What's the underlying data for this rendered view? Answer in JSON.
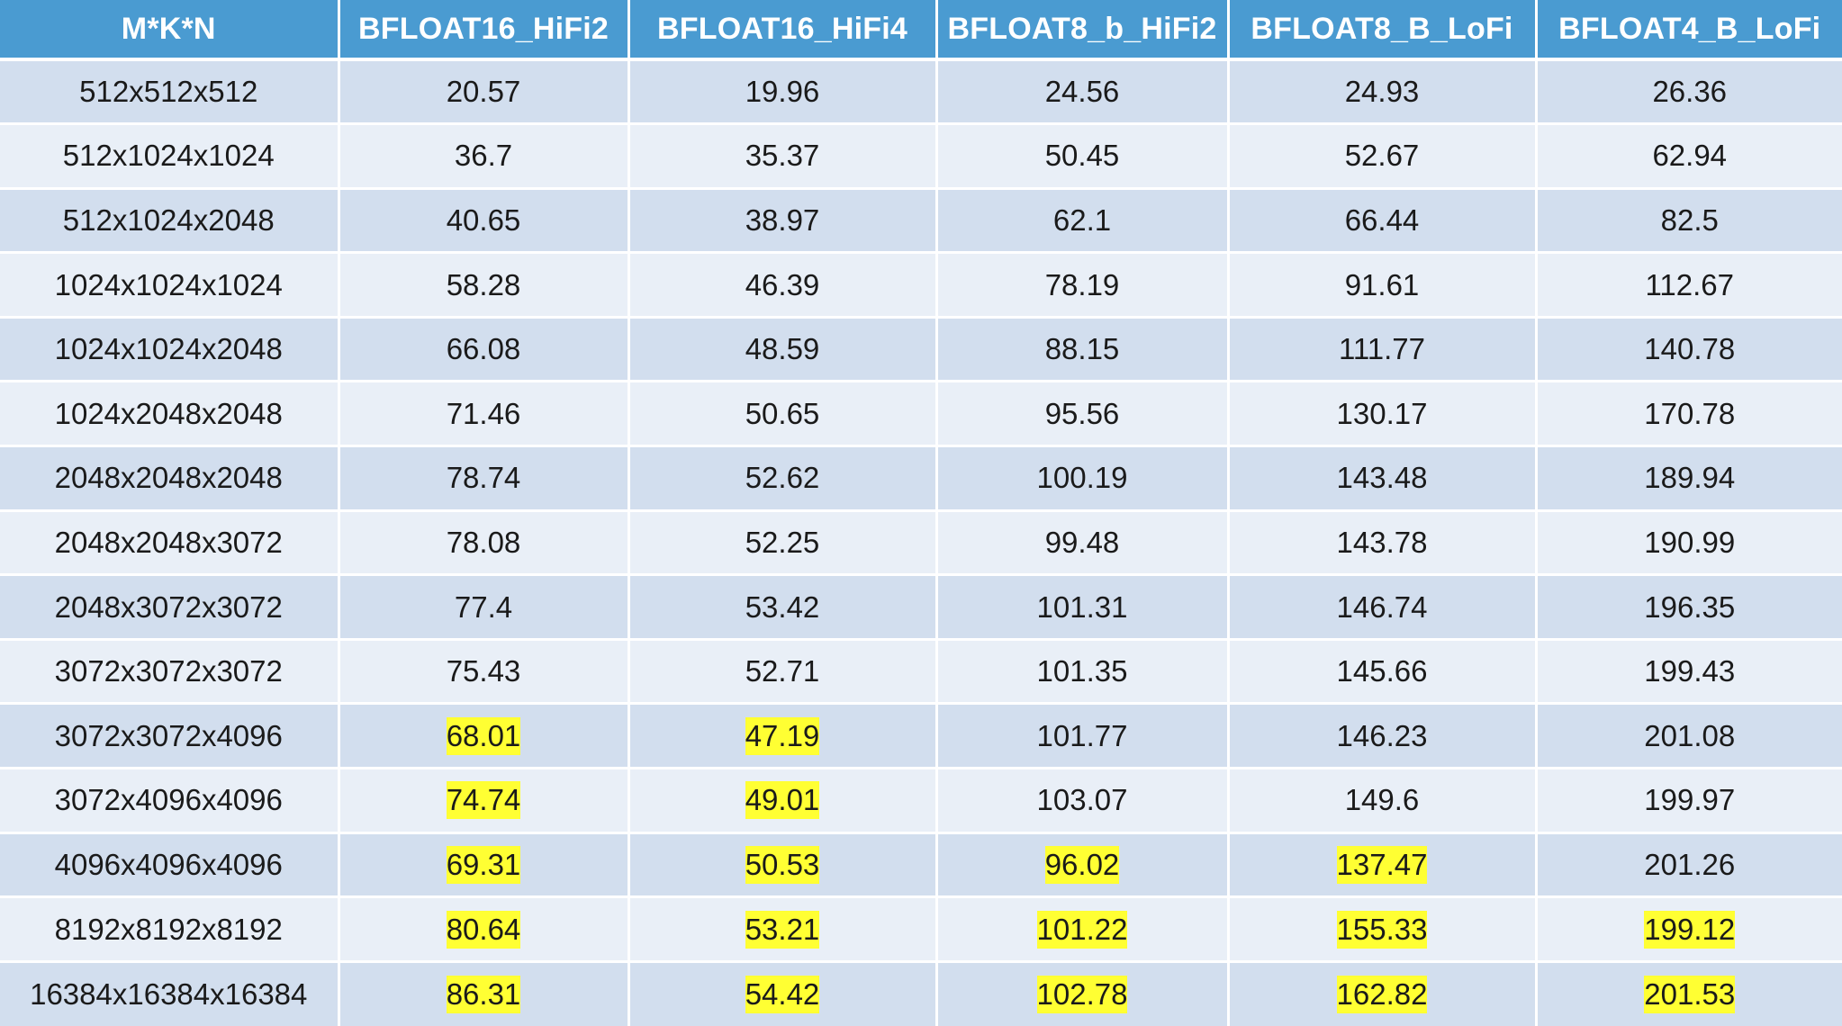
{
  "table": {
    "headers": [
      "M*K*N",
      "BFLOAT16_HiFi2",
      "BFLOAT16_HiFi4",
      "BFLOAT8_b_HiFi2",
      "BFLOAT8_B_LoFi",
      "BFLOAT4_B_LoFi"
    ],
    "highlight_color": "#ffff33",
    "header_color": "#4a9bd1",
    "row_colors": [
      "#d2deee",
      "#e9eff7"
    ],
    "rows": [
      {
        "label": "512x512x512",
        "values": [
          "20.57",
          "19.96",
          "24.56",
          "24.93",
          "26.36"
        ],
        "highlight": [
          false,
          false,
          false,
          false,
          false
        ]
      },
      {
        "label": "512x1024x1024",
        "values": [
          "36.7",
          "35.37",
          "50.45",
          "52.67",
          "62.94"
        ],
        "highlight": [
          false,
          false,
          false,
          false,
          false
        ]
      },
      {
        "label": "512x1024x2048",
        "values": [
          "40.65",
          "38.97",
          "62.1",
          "66.44",
          "82.5"
        ],
        "highlight": [
          false,
          false,
          false,
          false,
          false
        ]
      },
      {
        "label": "1024x1024x1024",
        "values": [
          "58.28",
          "46.39",
          "78.19",
          "91.61",
          "112.67"
        ],
        "highlight": [
          false,
          false,
          false,
          false,
          false
        ]
      },
      {
        "label": "1024x1024x2048",
        "values": [
          "66.08",
          "48.59",
          "88.15",
          "111.77",
          "140.78"
        ],
        "highlight": [
          false,
          false,
          false,
          false,
          false
        ]
      },
      {
        "label": "1024x2048x2048",
        "values": [
          "71.46",
          "50.65",
          "95.56",
          "130.17",
          "170.78"
        ],
        "highlight": [
          false,
          false,
          false,
          false,
          false
        ]
      },
      {
        "label": "2048x2048x2048",
        "values": [
          "78.74",
          "52.62",
          "100.19",
          "143.48",
          "189.94"
        ],
        "highlight": [
          false,
          false,
          false,
          false,
          false
        ]
      },
      {
        "label": "2048x2048x3072",
        "values": [
          "78.08",
          "52.25",
          "99.48",
          "143.78",
          "190.99"
        ],
        "highlight": [
          false,
          false,
          false,
          false,
          false
        ]
      },
      {
        "label": "2048x3072x3072",
        "values": [
          "77.4",
          "53.42",
          "101.31",
          "146.74",
          "196.35"
        ],
        "highlight": [
          false,
          false,
          false,
          false,
          false
        ]
      },
      {
        "label": "3072x3072x3072",
        "values": [
          "75.43",
          "52.71",
          "101.35",
          "145.66",
          "199.43"
        ],
        "highlight": [
          false,
          false,
          false,
          false,
          false
        ]
      },
      {
        "label": "3072x3072x4096",
        "values": [
          "68.01",
          "47.19",
          "101.77",
          "146.23",
          "201.08"
        ],
        "highlight": [
          true,
          true,
          false,
          false,
          false
        ]
      },
      {
        "label": "3072x4096x4096",
        "values": [
          "74.74",
          "49.01",
          "103.07",
          "149.6",
          "199.97"
        ],
        "highlight": [
          true,
          true,
          false,
          false,
          false
        ]
      },
      {
        "label": "4096x4096x4096",
        "values": [
          "69.31",
          "50.53",
          "96.02",
          "137.47",
          "201.26"
        ],
        "highlight": [
          true,
          true,
          true,
          true,
          false
        ]
      },
      {
        "label": "8192x8192x8192",
        "values": [
          "80.64",
          "53.21",
          "101.22",
          "155.33",
          "199.12"
        ],
        "highlight": [
          true,
          true,
          true,
          true,
          true
        ]
      },
      {
        "label": "16384x16384x16384",
        "values": [
          "86.31",
          "54.42",
          "102.78",
          "162.82",
          "201.53"
        ],
        "highlight": [
          true,
          true,
          true,
          true,
          true
        ]
      }
    ]
  }
}
